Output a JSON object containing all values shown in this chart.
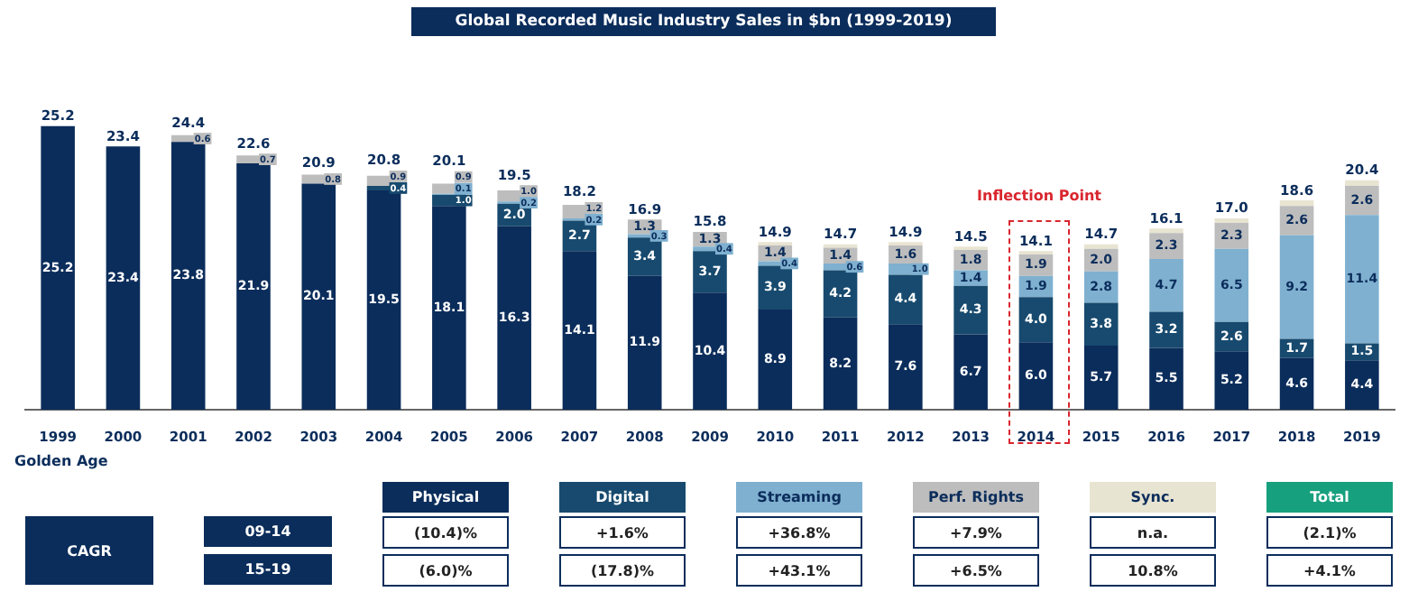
{
  "chart_data": {
    "type": "bar",
    "title": "Global Recorded Music Industry Sales in $bn (1999-2019)",
    "categories": [
      "1999",
      "2000",
      "2001",
      "2002",
      "2003",
      "2004",
      "2005",
      "2006",
      "2007",
      "2008",
      "2009",
      "2010",
      "2011",
      "2012",
      "2013",
      "2014",
      "2015",
      "2016",
      "2017",
      "2018",
      "2019"
    ],
    "stacked": true,
    "tick_labels": "x",
    "legend": "bottom",
    "series": [
      {
        "name": "Physical",
        "color": "#0b2d5b",
        "values": [
          25.2,
          23.4,
          23.8,
          21.9,
          20.1,
          19.5,
          18.1,
          16.3,
          14.1,
          11.9,
          10.4,
          8.9,
          8.2,
          7.6,
          6.7,
          6.0,
          5.7,
          5.5,
          5.2,
          4.6,
          4.4
        ],
        "value_labels": [
          "25.2",
          "23.4",
          "23.8",
          "21.9",
          "20.1",
          "19.5",
          "18.1",
          "16.3",
          "14.1",
          "11.9",
          "10.4",
          "8.9",
          "8.2",
          "7.6",
          "6.7",
          "6.0",
          "5.7",
          "5.5",
          "5.2",
          "4.6",
          "4.4"
        ]
      },
      {
        "name": "Digital",
        "color": "#174a6e",
        "values": [
          null,
          null,
          null,
          null,
          null,
          0.4,
          1.0,
          2.0,
          2.7,
          3.4,
          3.7,
          3.9,
          4.2,
          4.4,
          4.3,
          4.0,
          3.8,
          3.2,
          2.6,
          1.7,
          1.5
        ],
        "value_labels": [
          null,
          null,
          null,
          null,
          null,
          "0.4",
          "1.0",
          "2.0",
          "2.7",
          "3.4",
          "3.7",
          "3.9",
          "4.2",
          "4.4",
          "4.3",
          "4.0",
          "3.8",
          "3.2",
          "2.6",
          "1.7",
          "1.5"
        ]
      },
      {
        "name": "Streaming",
        "color": "#7fb0d0",
        "values": [
          null,
          null,
          null,
          null,
          null,
          null,
          0.1,
          0.2,
          0.2,
          0.3,
          0.4,
          0.4,
          0.6,
          1.0,
          1.4,
          1.9,
          2.8,
          4.7,
          6.5,
          9.2,
          11.4
        ],
        "value_labels": [
          null,
          null,
          null,
          null,
          null,
          null,
          "0.1",
          "0.2",
          "0.2",
          "0.3",
          "0.4",
          "0.4",
          "0.6",
          "1.0",
          "1.4",
          "1.9",
          "2.8",
          "4.7",
          "6.5",
          "9.2",
          "11.4"
        ]
      },
      {
        "name": "Perf. Rights",
        "color": "#bdbdbd",
        "values": [
          null,
          null,
          0.6,
          0.7,
          0.8,
          0.9,
          0.9,
          1.0,
          1.2,
          1.3,
          1.3,
          1.4,
          1.4,
          1.6,
          1.8,
          1.9,
          2.0,
          2.3,
          2.3,
          2.6,
          2.6
        ],
        "value_labels": [
          null,
          null,
          "0.6",
          "0.7",
          "0.8",
          "0.9",
          "0.9",
          "1.0",
          "1.2",
          "1.3",
          "1.3",
          "1.4",
          "1.4",
          "1.6",
          "1.8",
          "1.9",
          "2.0",
          "2.3",
          "2.3",
          "2.6",
          "2.6"
        ]
      },
      {
        "name": "Sync.",
        "color": "#e8e4d2",
        "values": [
          null,
          null,
          null,
          null,
          null,
          null,
          null,
          null,
          null,
          null,
          null,
          0.3,
          0.3,
          0.3,
          0.3,
          0.3,
          0.4,
          0.4,
          0.4,
          0.5,
          0.5
        ]
      }
    ],
    "totals": [
      "25.2",
      "23.4",
      "24.4",
      "22.6",
      "20.9",
      "20.8",
      "20.1",
      "19.5",
      "18.2",
      "16.9",
      "15.8",
      "14.9",
      "14.7",
      "14.9",
      "14.5",
      "14.1",
      "14.7",
      "16.1",
      "17.0",
      "18.6",
      "20.4"
    ],
    "annotations": [
      "Inflection Point",
      "Golden Age",
      "CAGR",
      "09-14",
      "15-19",
      "Total",
      "(10.4)%",
      "+1.6%",
      "+36.8%",
      "+7.9%",
      "n.a.",
      "(2.1)%",
      "(6.0)%",
      "(17.8)%",
      "+43.1%",
      "+6.5%",
      "10.8%",
      "+4.1%"
    ]
  }
}
